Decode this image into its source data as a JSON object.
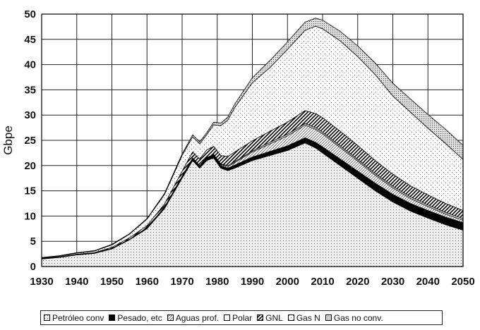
{
  "chart_data": {
    "type": "area",
    "stacked": true,
    "title": "",
    "xlabel": "",
    "ylabel": "Gbpe",
    "xlim": [
      1930,
      2050
    ],
    "ylim": [
      0,
      50
    ],
    "x_ticks": [
      "1930",
      "1940",
      "1950",
      "1960",
      "1970",
      "1980",
      "1990",
      "2000",
      "2010",
      "2020",
      "2030",
      "2040",
      "2050"
    ],
    "y_ticks": [
      "0",
      "5",
      "10",
      "15",
      "20",
      "25",
      "30",
      "35",
      "40",
      "45",
      "50"
    ],
    "grid": true,
    "legend_position": "bottom",
    "x": [
      1930,
      1935,
      1940,
      1945,
      1950,
      1955,
      1960,
      1965,
      1970,
      1973,
      1975,
      1977,
      1979,
      1981,
      1983,
      1985,
      1990,
      1995,
      2000,
      2005,
      2008,
      2010,
      2015,
      2020,
      2025,
      2030,
      2035,
      2040,
      2045,
      2050
    ],
    "series": [
      {
        "name": "Petróleo conv",
        "pattern": "dots-sparse",
        "values": [
          1.5,
          1.8,
          2.3,
          2.6,
          3.5,
          5.3,
          7.5,
          11.5,
          17.5,
          21,
          19.5,
          21,
          21.5,
          19.5,
          19,
          19.5,
          21,
          22,
          23,
          24.5,
          23.5,
          22.5,
          20,
          17.5,
          15,
          12.8,
          11,
          9.6,
          8.3,
          7.2
        ]
      },
      {
        "name": "Pesado, etc",
        "pattern": "solid-black",
        "values": [
          0.05,
          0.05,
          0.05,
          0.05,
          0.1,
          0.1,
          0.2,
          0.3,
          0.4,
          0.5,
          0.5,
          0.5,
          0.5,
          0.5,
          0.5,
          0.6,
          0.7,
          0.8,
          0.9,
          1,
          1.1,
          1.2,
          1.3,
          1.4,
          1.5,
          1.5,
          1.5,
          1.5,
          1.5,
          1.5
        ]
      },
      {
        "name": "Aguas prof.",
        "pattern": "diagonal-fine",
        "values": [
          0,
          0,
          0,
          0,
          0,
          0,
          0,
          0,
          0,
          0,
          0,
          0,
          0.1,
          0.2,
          0.3,
          0.5,
          1,
          1.5,
          2,
          2.5,
          2.6,
          2.6,
          2.3,
          2,
          1.6,
          1.3,
          1,
          0.8,
          0.6,
          0.5
        ]
      },
      {
        "name": "Polar",
        "pattern": "white",
        "values": [
          0,
          0,
          0,
          0,
          0,
          0,
          0,
          0,
          0,
          0,
          0,
          0.1,
          0.1,
          0.1,
          0.2,
          0.2,
          0.2,
          0.3,
          0.3,
          0.3,
          0.3,
          0.3,
          0.3,
          0.3,
          0.3,
          0.3,
          0.3,
          0.3,
          0.3,
          0.3
        ]
      },
      {
        "name": "GNL",
        "pattern": "diagonal-bold",
        "values": [
          0.05,
          0.05,
          0.1,
          0.1,
          0.2,
          0.3,
          0.4,
          0.6,
          1,
          1.2,
          1.3,
          1.5,
          1.6,
          1.7,
          1.8,
          1.9,
          2,
          2.2,
          2.4,
          2.6,
          2.8,
          2.9,
          2.9,
          2.8,
          2.6,
          2.4,
          2.2,
          2,
          1.8,
          1.6
        ]
      },
      {
        "name": "Gas N",
        "pattern": "dots-wide",
        "values": [
          0.1,
          0.15,
          0.2,
          0.3,
          0.5,
          0.7,
          1.3,
          1.9,
          3.1,
          3,
          3,
          3,
          4.3,
          5.9,
          7.2,
          8.8,
          11.5,
          12.6,
          14.4,
          15.9,
          17.3,
          17.6,
          17.9,
          17.6,
          17,
          15.5,
          14.6,
          13.2,
          11.9,
          10.1
        ]
      },
      {
        "name": "Gas no conv.",
        "pattern": "dots-dense",
        "values": [
          0.1,
          0.1,
          0.1,
          0.1,
          0.1,
          0.1,
          0.1,
          0.2,
          0.3,
          0.4,
          0.4,
          0.4,
          0.5,
          0.5,
          0.6,
          0.7,
          1,
          1.4,
          1.5,
          1.6,
          1.6,
          1.7,
          1.9,
          2.1,
          2.3,
          2.5,
          2.6,
          2.7,
          2.8,
          2.8
        ]
      }
    ]
  }
}
